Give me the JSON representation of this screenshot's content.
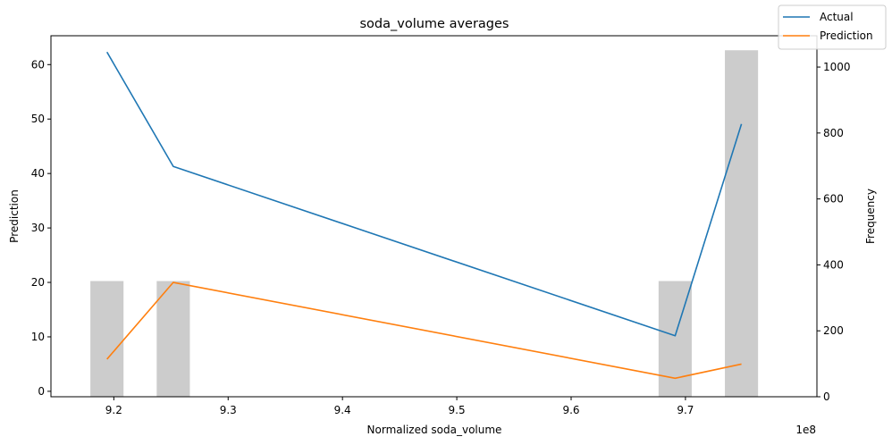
{
  "chart_data": {
    "type": "line+bar",
    "title": "soda_volume averages",
    "xlabel": "Normalized soda_volume",
    "ylabel_left": "Prediction",
    "ylabel_right": "Frequency",
    "x_scale_label": "1e8",
    "xlim": [
      9.145,
      9.815
    ],
    "ylim_left": [
      -1.0,
      65.3
    ],
    "ylim_right": [
      0,
      1095
    ],
    "x_ticks": [
      9.2,
      9.3,
      9.4,
      9.5,
      9.6,
      9.7
    ],
    "x_tick_labels": [
      "9.2",
      "9.3",
      "9.4",
      "9.5",
      "9.6",
      "9.7"
    ],
    "y_ticks_left": [
      0,
      10,
      20,
      30,
      40,
      50,
      60
    ],
    "y_tick_labels_left": [
      "0",
      "10",
      "20",
      "30",
      "40",
      "50",
      "60"
    ],
    "y_ticks_right": [
      0,
      200,
      400,
      600,
      800,
      1000
    ],
    "y_tick_labels_right": [
      "0",
      "200",
      "400",
      "600",
      "800",
      "1000"
    ],
    "series": [
      {
        "name": "Actual",
        "color": "#1f77b4",
        "x": [
          9.194,
          9.252,
          9.691,
          9.749
        ],
        "values": [
          62.3,
          41.3,
          10.2,
          49.1
        ]
      },
      {
        "name": "Prediction",
        "color": "#ff7f0e",
        "x": [
          9.194,
          9.252,
          9.691,
          9.749
        ],
        "values": [
          5.9,
          20.0,
          2.4,
          5.0
        ]
      }
    ],
    "histogram": {
      "color": "#cccccc",
      "x": [
        9.194,
        9.252,
        9.691,
        9.749
      ],
      "width": 0.029,
      "values": [
        351,
        351,
        351,
        1051
      ]
    },
    "legend": {
      "position": "top-right",
      "items": [
        "Actual",
        "Prediction"
      ]
    }
  }
}
